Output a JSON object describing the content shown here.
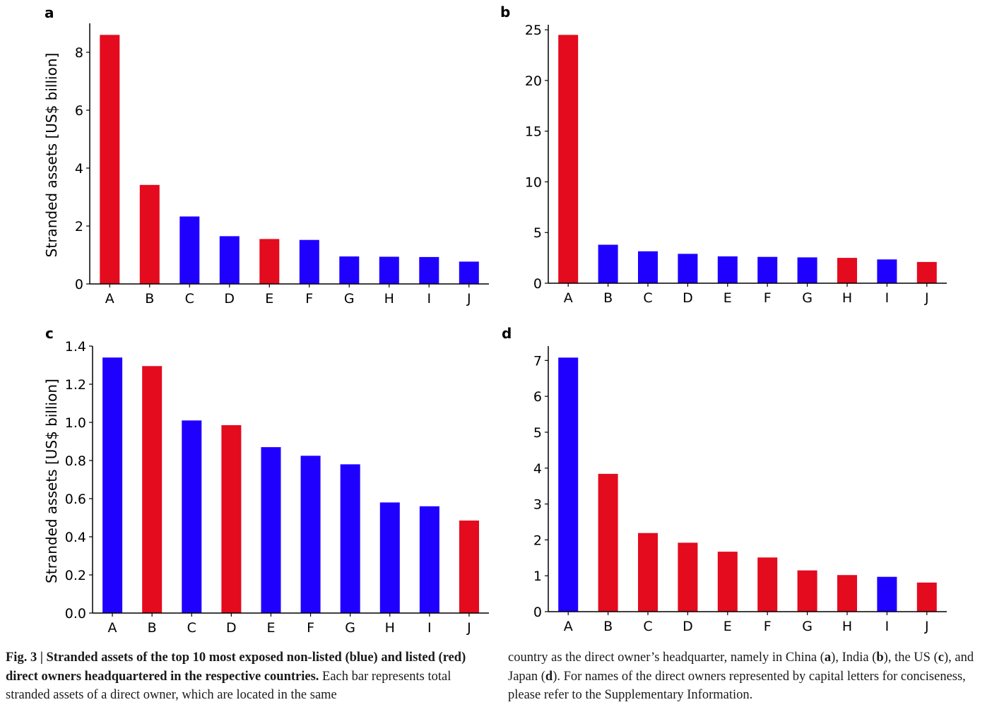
{
  "colors": {
    "listed": "#e30b1d",
    "non_listed": "#1f00ff"
  },
  "chart_data": [
    {
      "panel": "a",
      "type": "bar",
      "categories": [
        "A",
        "B",
        "C",
        "D",
        "E",
        "F",
        "G",
        "H",
        "I",
        "J"
      ],
      "values": [
        8.6,
        3.42,
        2.33,
        1.65,
        1.55,
        1.52,
        0.95,
        0.94,
        0.93,
        0.77
      ],
      "bar_colors": [
        "listed",
        "listed",
        "non_listed",
        "non_listed",
        "listed",
        "non_listed",
        "non_listed",
        "non_listed",
        "non_listed",
        "non_listed"
      ],
      "ylabel": "Stranded assets [US$ billion]",
      "ylim": [
        0,
        9
      ],
      "yticks": [
        0,
        2,
        4,
        6,
        8
      ],
      "ytick_labels": [
        "0",
        "2",
        "4",
        "6",
        "8"
      ]
    },
    {
      "panel": "b",
      "type": "bar",
      "categories": [
        "A",
        "B",
        "C",
        "D",
        "E",
        "F",
        "G",
        "H",
        "I",
        "J"
      ],
      "values": [
        24.5,
        3.8,
        3.15,
        2.9,
        2.65,
        2.6,
        2.55,
        2.5,
        2.35,
        2.1
      ],
      "bar_colors": [
        "listed",
        "non_listed",
        "non_listed",
        "non_listed",
        "non_listed",
        "non_listed",
        "non_listed",
        "listed",
        "non_listed",
        "listed"
      ],
      "ylabel": "",
      "ylim": [
        0,
        25.5
      ],
      "yticks": [
        0,
        5,
        10,
        15,
        20,
        25
      ],
      "ytick_labels": [
        "0",
        "5",
        "10",
        "15",
        "20",
        "25"
      ]
    },
    {
      "panel": "c",
      "type": "bar",
      "categories": [
        "A",
        "B",
        "C",
        "D",
        "E",
        "F",
        "G",
        "H",
        "I",
        "J"
      ],
      "values": [
        1.34,
        1.295,
        1.01,
        0.985,
        0.87,
        0.825,
        0.78,
        0.58,
        0.56,
        0.485
      ],
      "bar_colors": [
        "non_listed",
        "listed",
        "non_listed",
        "listed",
        "non_listed",
        "non_listed",
        "non_listed",
        "non_listed",
        "non_listed",
        "listed"
      ],
      "ylabel": "Stranded assets [US$ billion]",
      "ylim": [
        0,
        1.4
      ],
      "yticks": [
        0,
        0.2,
        0.4,
        0.6,
        0.8,
        1.0,
        1.2,
        1.4
      ],
      "ytick_labels": [
        "0.0",
        "0.2",
        "0.4",
        "0.6",
        "0.8",
        "1.0",
        "1.2",
        "1.4"
      ]
    },
    {
      "panel": "d",
      "type": "bar",
      "categories": [
        "A",
        "B",
        "C",
        "D",
        "E",
        "F",
        "G",
        "H",
        "I",
        "J"
      ],
      "values": [
        7.08,
        3.84,
        2.19,
        1.92,
        1.67,
        1.51,
        1.15,
        1.02,
        0.97,
        0.81
      ],
      "bar_colors": [
        "non_listed",
        "listed",
        "listed",
        "listed",
        "listed",
        "listed",
        "listed",
        "listed",
        "non_listed",
        "listed"
      ],
      "ylabel": "",
      "ylim": [
        0,
        7.4
      ],
      "yticks": [
        0,
        1,
        2,
        3,
        4,
        5,
        6,
        7
      ],
      "ytick_labels": [
        "0",
        "1",
        "2",
        "3",
        "4",
        "5",
        "6",
        "7"
      ]
    }
  ],
  "caption": {
    "figure_label": "Fig. 3 | ",
    "bold_text": "Stranded assets of the top 10 most exposed non-listed (blue) and listed (red) direct owners headquartered in the respective countries.",
    "left_rest": " Each bar represents total stranded assets of a direct owner, which are located in the same",
    "right_1": "country as the direct owner’s headquarter, namely in China (",
    "right_a": "a",
    "right_2": "), India (",
    "right_b": "b",
    "right_3": "), the US (",
    "right_c": "c",
    "right_4": "), and Japan (",
    "right_d": "d",
    "right_5": "). For names of the direct owners represented by capital letters for conciseness, please refer to the Supplementary Information."
  }
}
